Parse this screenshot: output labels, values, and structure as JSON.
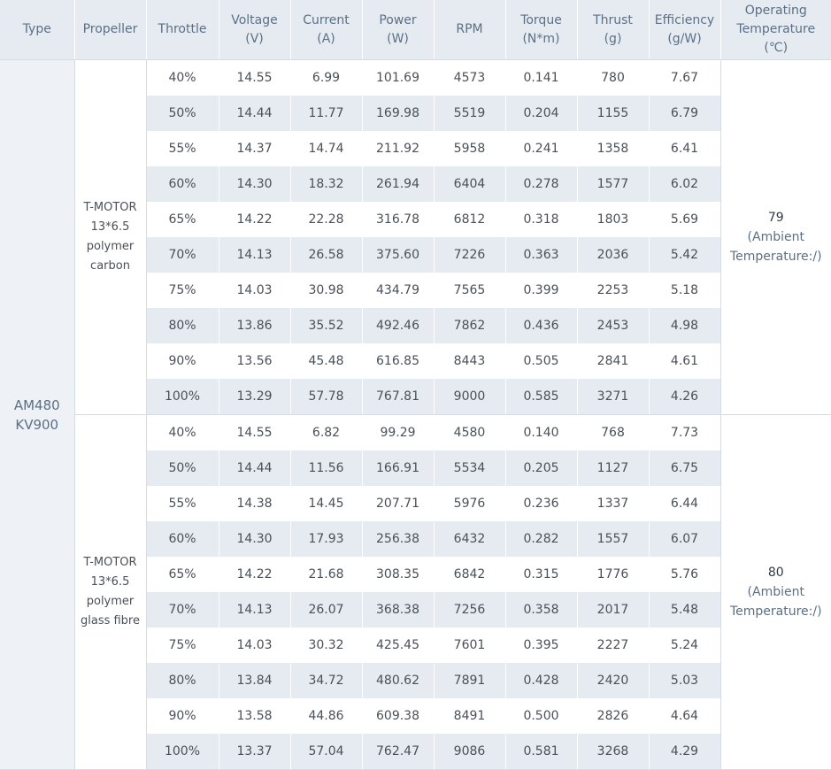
{
  "headers": [
    [
      "Type"
    ],
    [
      "Propeller"
    ],
    [
      "Throttle"
    ],
    [
      "Voltage",
      "(V)"
    ],
    [
      "Current",
      "(A)"
    ],
    [
      "Power",
      "(W)"
    ],
    [
      "RPM"
    ],
    [
      "Torque",
      "(N*m)"
    ],
    [
      "Thrust",
      "(g)"
    ],
    [
      "Efficiency",
      "(g/W)"
    ],
    [
      "Operating",
      "Temperature",
      "(℃)"
    ]
  ],
  "type": [
    "AM480",
    "KV900"
  ],
  "groups": [
    {
      "propeller": [
        "T-MOTOR",
        "13*6.5",
        "polymer",
        "carbon"
      ],
      "temperature": {
        "value": "79",
        "note": [
          "(Ambient",
          "Temperature:/)"
        ]
      },
      "rows": [
        [
          "40%",
          "14.55",
          "6.99",
          "101.69",
          "4573",
          "0.141",
          "780",
          "7.67"
        ],
        [
          "50%",
          "14.44",
          "11.77",
          "169.98",
          "5519",
          "0.204",
          "1155",
          "6.79"
        ],
        [
          "55%",
          "14.37",
          "14.74",
          "211.92",
          "5958",
          "0.241",
          "1358",
          "6.41"
        ],
        [
          "60%",
          "14.30",
          "18.32",
          "261.94",
          "6404",
          "0.278",
          "1577",
          "6.02"
        ],
        [
          "65%",
          "14.22",
          "22.28",
          "316.78",
          "6812",
          "0.318",
          "1803",
          "5.69"
        ],
        [
          "70%",
          "14.13",
          "26.58",
          "375.60",
          "7226",
          "0.363",
          "2036",
          "5.42"
        ],
        [
          "75%",
          "14.03",
          "30.98",
          "434.79",
          "7565",
          "0.399",
          "2253",
          "5.18"
        ],
        [
          "80%",
          "13.86",
          "35.52",
          "492.46",
          "7862",
          "0.436",
          "2453",
          "4.98"
        ],
        [
          "90%",
          "13.56",
          "45.48",
          "616.85",
          "8443",
          "0.505",
          "2841",
          "4.61"
        ],
        [
          "100%",
          "13.29",
          "57.78",
          "767.81",
          "9000",
          "0.585",
          "3271",
          "4.26"
        ]
      ]
    },
    {
      "propeller": [
        "T-MOTOR",
        "13*6.5",
        "polymer",
        "glass fibre"
      ],
      "temperature": {
        "value": "80",
        "note": [
          "(Ambient",
          "Temperature:/)"
        ]
      },
      "rows": [
        [
          "40%",
          "14.55",
          "6.82",
          "99.29",
          "4580",
          "0.140",
          "768",
          "7.73"
        ],
        [
          "50%",
          "14.44",
          "11.56",
          "166.91",
          "5534",
          "0.205",
          "1127",
          "6.75"
        ],
        [
          "55%",
          "14.38",
          "14.45",
          "207.71",
          "5976",
          "0.236",
          "1337",
          "6.44"
        ],
        [
          "60%",
          "14.30",
          "17.93",
          "256.38",
          "6432",
          "0.282",
          "1557",
          "6.07"
        ],
        [
          "65%",
          "14.22",
          "21.68",
          "308.35",
          "6842",
          "0.315",
          "1776",
          "5.76"
        ],
        [
          "70%",
          "14.13",
          "26.07",
          "368.38",
          "7256",
          "0.358",
          "2017",
          "5.48"
        ],
        [
          "75%",
          "14.03",
          "30.32",
          "425.45",
          "7601",
          "0.395",
          "2227",
          "5.24"
        ],
        [
          "80%",
          "13.84",
          "34.72",
          "480.62",
          "7891",
          "0.428",
          "2420",
          "5.03"
        ],
        [
          "90%",
          "13.58",
          "44.86",
          "609.38",
          "8491",
          "0.500",
          "2826",
          "4.64"
        ],
        [
          "100%",
          "13.37",
          "57.04",
          "762.47",
          "9086",
          "0.581",
          "3268",
          "4.29"
        ]
      ]
    }
  ]
}
